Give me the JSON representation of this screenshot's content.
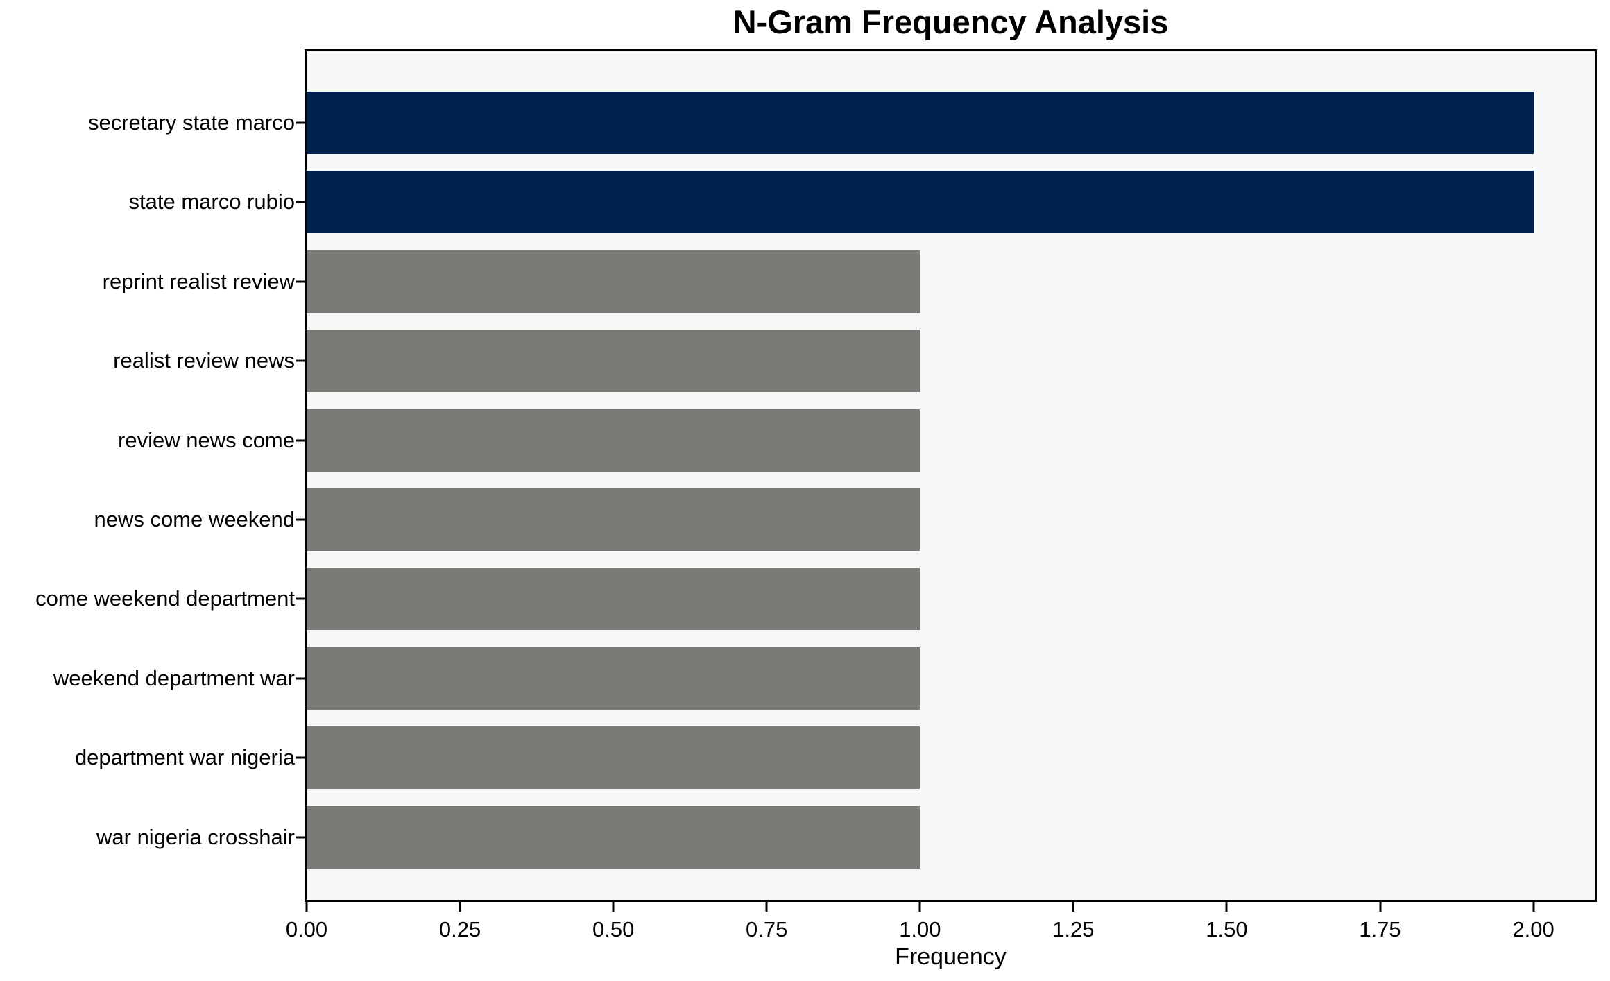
{
  "chart_data": {
    "type": "bar",
    "orientation": "horizontal",
    "title": "N-Gram Frequency Analysis",
    "xlabel": "Frequency",
    "ylabel": "",
    "categories": [
      "secretary state marco",
      "state marco rubio",
      "reprint realist review",
      "realist review news",
      "review news come",
      "news come weekend",
      "come weekend department",
      "weekend department war",
      "department war nigeria",
      "war nigeria crosshair"
    ],
    "values": [
      2,
      2,
      1,
      1,
      1,
      1,
      1,
      1,
      1,
      1
    ],
    "bar_colors": [
      "#01224d",
      "#01224d",
      "#7b7a77",
      "#7b7a77",
      "#7b7a77",
      "#7b7a77",
      "#7b7a77",
      "#7b7a77",
      "#7b7a77",
      "#7b7a77"
    ],
    "xlim": [
      0,
      2.1
    ],
    "xticks": [
      0.0,
      0.25,
      0.5,
      0.75,
      1.0,
      1.25,
      1.5,
      1.75,
      2.0
    ],
    "xtick_labels": [
      "0.00",
      "0.25",
      "0.50",
      "0.75",
      "1.00",
      "1.25",
      "1.50",
      "1.75",
      "2.00"
    ],
    "grid": false,
    "legend": null,
    "colors": {
      "highlight_bar": "#01224d",
      "default_bar": "#7b7a77",
      "plot_background": "#f7f7f7",
      "figure_background": "#ffffff",
      "frame": "#000000",
      "text": "#000000"
    }
  }
}
